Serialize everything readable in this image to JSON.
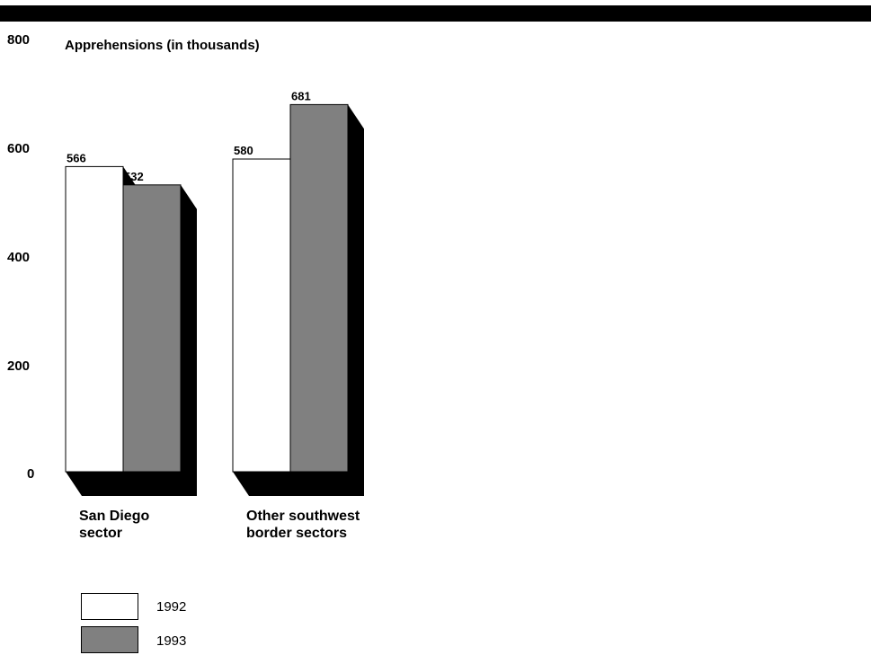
{
  "chart_data": {
    "type": "bar",
    "ylabel": "Apprehensions (in thousands)",
    "ylim": [
      0,
      800
    ],
    "yticks": [
      "800",
      "600",
      "400",
      "200",
      "0"
    ],
    "categories": [
      "San Diego\nsector",
      "Other southwest\nborder sectors"
    ],
    "series": [
      {
        "name": "1992",
        "values": [
          566,
          580
        ],
        "color": "#ffffff"
      },
      {
        "name": "1993",
        "values": [
          532,
          681
        ],
        "color": "#808080"
      }
    ],
    "grid": false,
    "legend_position": "bottom-left"
  }
}
